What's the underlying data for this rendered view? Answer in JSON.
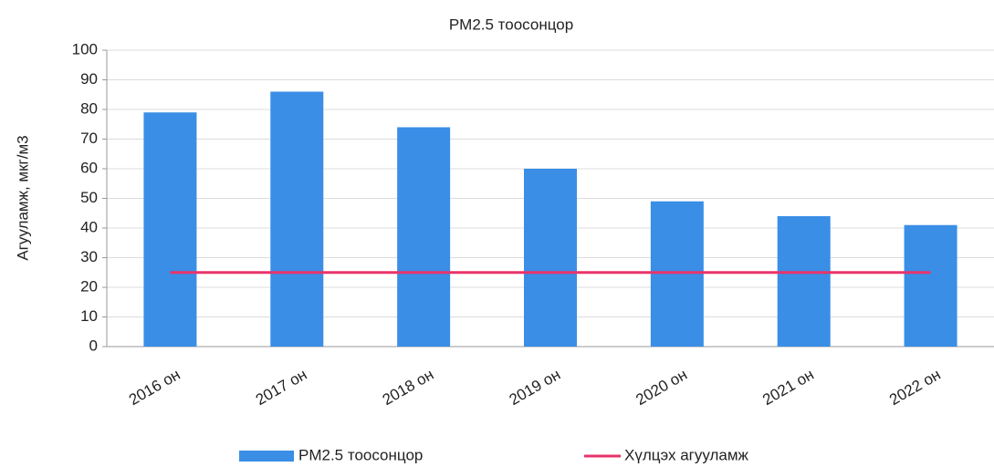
{
  "chart_data": {
    "type": "bar",
    "title": "PM2.5 тоосонцор",
    "y_label": "Агууламж, мкг/м3",
    "categories": [
      "2016 он",
      "2017 он",
      "2018 он",
      "2019 он",
      "2020 он",
      "2021 он",
      "2022 он"
    ],
    "series": [
      {
        "name": "PM2.5 тоосонцор",
        "type": "bar",
        "color": "#3a8ee6",
        "values": [
          79,
          86,
          74,
          60,
          49,
          44,
          41
        ]
      },
      {
        "name": "Хүлцэх агууламж",
        "type": "line",
        "color": "#e8336a",
        "values": [
          25,
          25,
          25,
          25,
          25,
          25,
          25
        ]
      }
    ],
    "ylim": [
      0,
      100
    ],
    "yticks": [
      0,
      10,
      20,
      30,
      40,
      50,
      60,
      70,
      80,
      90,
      100
    ],
    "grid": true,
    "legend": "bottom"
  }
}
